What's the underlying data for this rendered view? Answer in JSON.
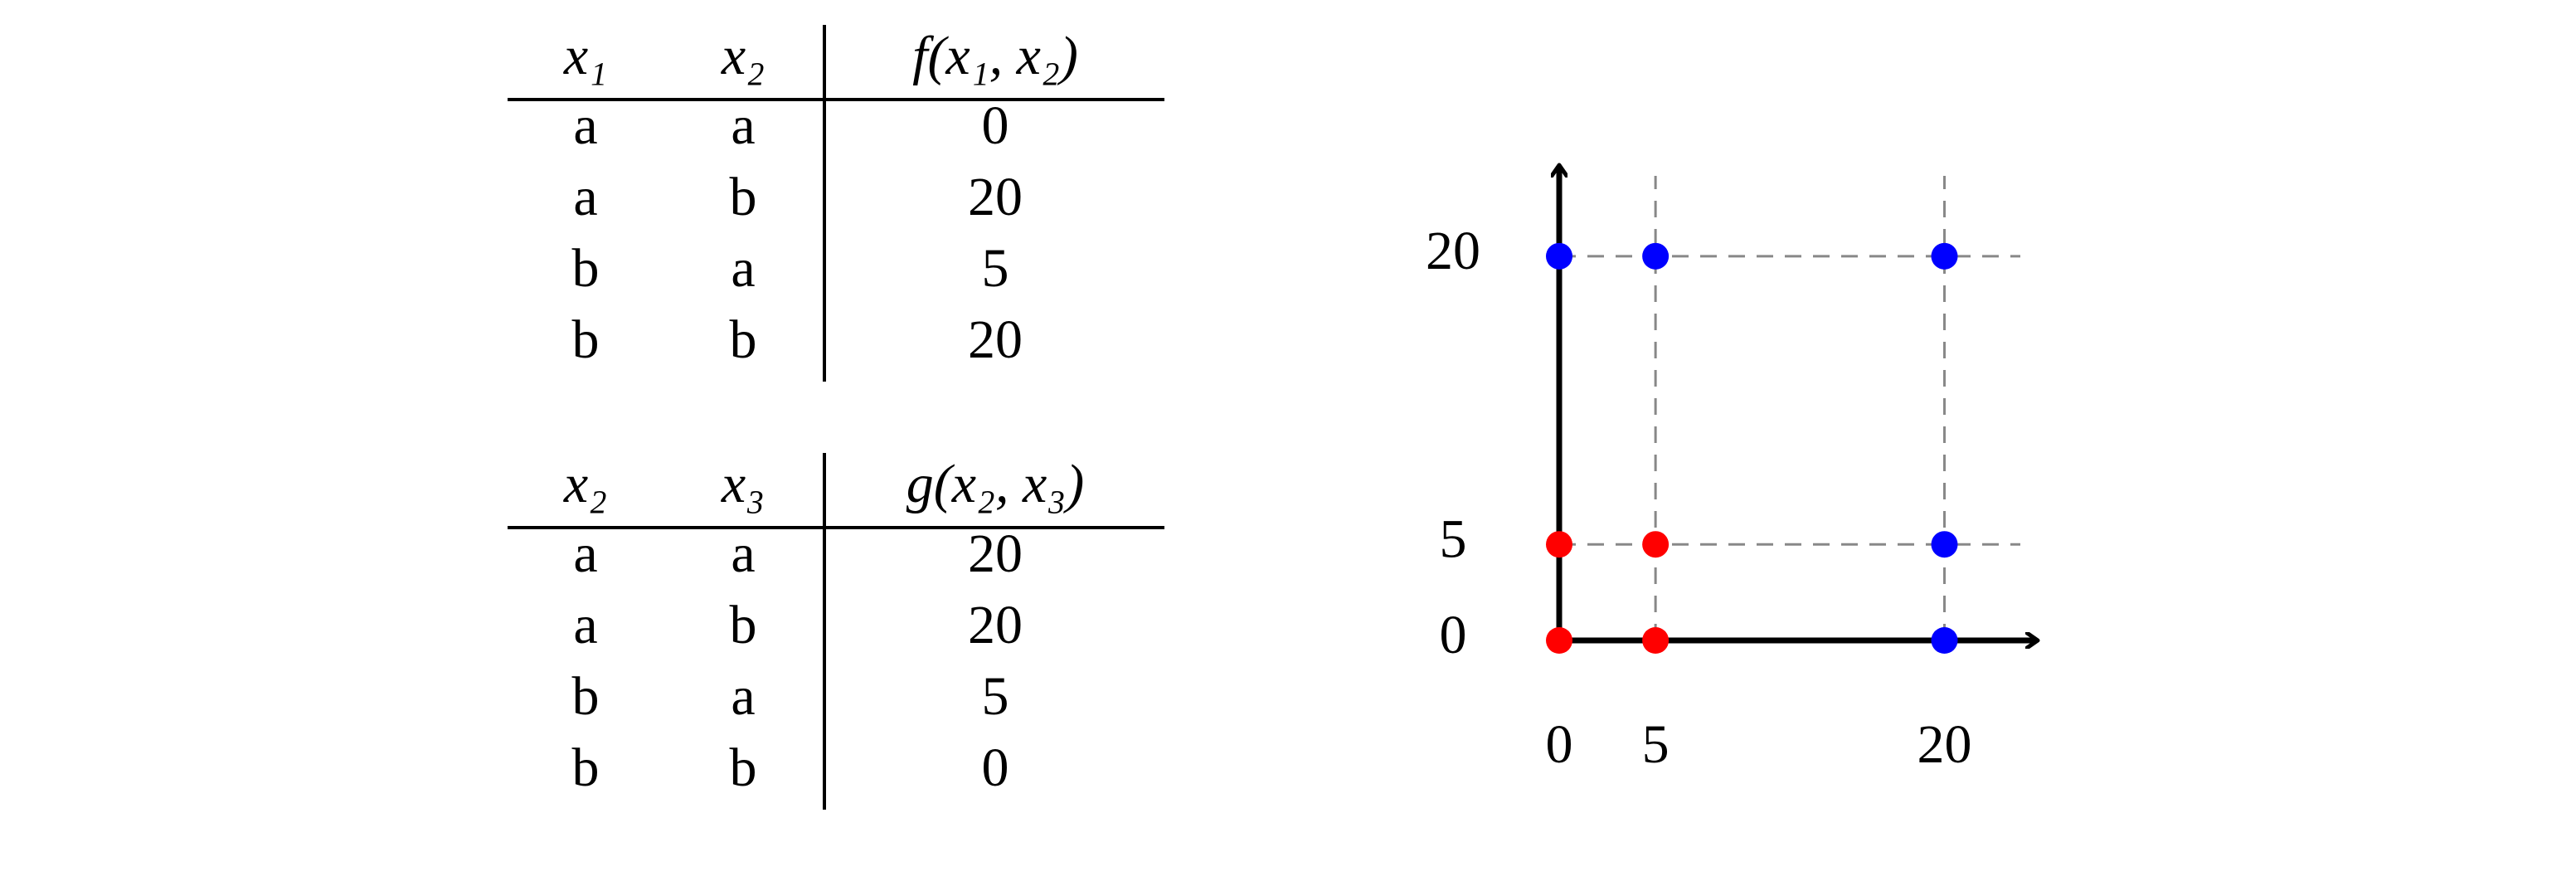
{
  "tables": [
    {
      "header": [
        "x₁",
        "x₂",
        "f(x₁, x₂)"
      ],
      "rows": [
        [
          "a",
          "a",
          0
        ],
        [
          "a",
          "b",
          20
        ],
        [
          "b",
          "a",
          5
        ],
        [
          "b",
          "b",
          20
        ]
      ]
    },
    {
      "header": [
        "x₂",
        "x₃",
        "g(x₂, x₃)"
      ],
      "rows": [
        [
          "a",
          "a",
          20
        ],
        [
          "a",
          "b",
          20
        ],
        [
          "b",
          "a",
          5
        ],
        [
          "b",
          "b",
          0
        ]
      ]
    }
  ],
  "chart_data": {
    "type": "scatter",
    "series": [
      {
        "color": "#ff0000",
        "x": [
          0,
          5,
          0,
          5
        ],
        "y": [
          0,
          0,
          5,
          5
        ]
      },
      {
        "color": "#0000ff",
        "x": [
          20,
          20,
          0,
          5,
          20
        ],
        "y": [
          0,
          5,
          20,
          20,
          20
        ]
      }
    ],
    "xlim": [
      0,
      24.8
    ],
    "ylim": [
      0,
      24.7
    ],
    "xticks": [
      0,
      5,
      20
    ],
    "yticks": [
      0,
      5,
      20
    ],
    "grid": true
  }
}
